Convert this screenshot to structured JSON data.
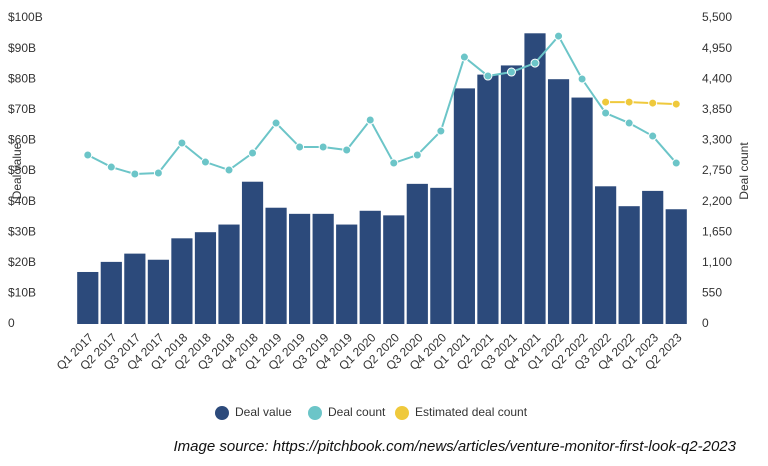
{
  "chart_data": {
    "type": "bar",
    "categories": [
      "Q1 2017",
      "Q2 2017",
      "Q3 2017",
      "Q4 2017",
      "Q1 2018",
      "Q2 2018",
      "Q3 2018",
      "Q4 2018",
      "Q1 2019",
      "Q2 2019",
      "Q3 2019",
      "Q4 2019",
      "Q1 2020",
      "Q2 2020",
      "Q3 2020",
      "Q4 2020",
      "Q1 2021",
      "Q2 2021",
      "Q3 2021",
      "Q4 2021",
      "Q1 2022",
      "Q2 2022",
      "Q3 2022",
      "Q4 2022",
      "Q1 2023",
      "Q2 2023"
    ],
    "series": [
      {
        "name": "Deal value",
        "color": "#2c4a7b",
        "values": [
          17,
          20.3,
          23,
          21,
          28,
          30,
          32.5,
          46.5,
          38,
          36,
          36,
          32.5,
          37,
          35.5,
          45.8,
          44.5,
          77,
          81.5,
          84.5,
          95,
          80,
          74,
          45,
          38.5,
          43.5,
          37.5
        ]
      },
      {
        "name": "Deal count",
        "color": "#6cc5c8",
        "axis": "y2",
        "values": [
          3037,
          2821,
          2696,
          2714,
          3253,
          2911,
          2767,
          3073,
          3612,
          3181,
          3181,
          3127,
          3666,
          2893,
          3037,
          3468,
          4798,
          4457,
          4529,
          4690,
          5175,
          4403,
          3792,
          3612,
          3378,
          2893
        ]
      },
      {
        "name": "Estimated deal count",
        "color": "#efc93c",
        "axis": "y2",
        "values": [
          null,
          null,
          null,
          null,
          null,
          null,
          null,
          null,
          null,
          null,
          null,
          null,
          null,
          null,
          null,
          null,
          null,
          null,
          null,
          null,
          null,
          null,
          3989,
          3989,
          3971,
          3953
        ]
      }
    ],
    "ylabel": "Deal value",
    "y2label": "Deal count",
    "ylim": [
      0,
      100
    ],
    "yticks": [
      0,
      {
        "value": 10,
        "label": "$10B"
      },
      {
        "value": 20,
        "label": "$20B"
      },
      {
        "value": 30,
        "label": "$30B"
      },
      {
        "value": 40,
        "label": "$40B"
      },
      {
        "value": 50,
        "label": "$50B"
      },
      {
        "value": 60,
        "label": "$60B"
      },
      {
        "value": 70,
        "label": "$70B"
      },
      {
        "value": 80,
        "label": "$80B"
      },
      {
        "value": 90,
        "label": "$90B"
      },
      {
        "value": 100,
        "label": "$100B"
      }
    ],
    "y2lim": [
      0,
      5500
    ],
    "y2ticks": [
      0,
      550,
      {
        "value": 1100,
        "label": "1,100"
      },
      {
        "value": 1650,
        "label": "1,650"
      },
      {
        "value": 2200,
        "label": "2,200"
      },
      {
        "value": 2750,
        "label": "2,750"
      },
      {
        "value": 3300,
        "label": "3,300"
      },
      {
        "value": 3850,
        "label": "3,850"
      },
      {
        "value": 4400,
        "label": "4,400"
      },
      {
        "value": 4950,
        "label": "4,950"
      },
      {
        "value": 5500,
        "label": "5,500"
      }
    ],
    "grid": false,
    "legend": "bottom",
    "source": "Image source: https://pitchbook.com/news/articles/venture-monitor-first-look-q2-2023"
  }
}
